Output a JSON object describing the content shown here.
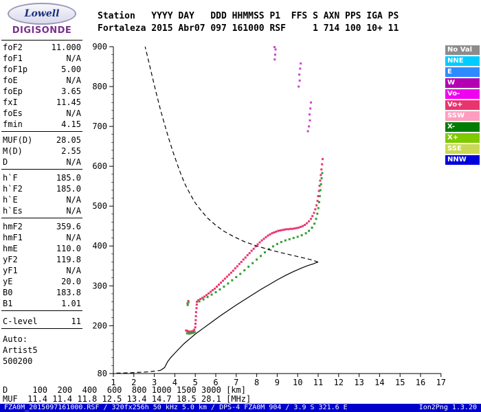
{
  "logo": {
    "line1": "Lowell",
    "line2": "DIGISONDE"
  },
  "header": {
    "line1": "Station   YYYY DAY   DDD HHMMSS P1  FFS S AXN PPS IGA PS",
    "line2": "Fortaleza 2015 Abr07 097 161000 RSF     1 714 100 10+ 11",
    "fields": {
      "Station": "Fortaleza",
      "YYYY": "2015",
      "DAY": "Abr07",
      "DDD": "097",
      "HHMMSS": "161000",
      "P1": "RSF",
      "FFS": "",
      "S": "1",
      "AXN": "714",
      "PPS": "100",
      "IGA": "10+",
      "PS": "11"
    }
  },
  "params": {
    "groups": [
      {
        "rows": [
          {
            "label": "foF2",
            "value": "11.000"
          },
          {
            "label": "foF1",
            "value": "N/A"
          },
          {
            "label": "foF1p",
            "value": "5.00"
          },
          {
            "label": "foE",
            "value": "N/A"
          },
          {
            "label": "foEp",
            "value": "3.65"
          },
          {
            "label": "fxI",
            "value": "11.45"
          },
          {
            "label": "foEs",
            "value": "N/A"
          },
          {
            "label": "fmin",
            "value": "4.15"
          }
        ]
      },
      {
        "rows": [
          {
            "label": "MUF(D)",
            "value": "28.05"
          },
          {
            "label": "M(D)",
            "value": "2.55"
          },
          {
            "label": "D",
            "value": "N/A"
          }
        ]
      },
      {
        "rows": [
          {
            "label": "h`F",
            "value": "185.0"
          },
          {
            "label": "h`F2",
            "value": "185.0"
          },
          {
            "label": "h`E",
            "value": "N/A"
          },
          {
            "label": "h`Es",
            "value": "N/A"
          }
        ]
      },
      {
        "rows": [
          {
            "label": "hmF2",
            "value": "359.6"
          },
          {
            "label": "hmF1",
            "value": "N/A"
          },
          {
            "label": "hmE",
            "value": "110.0"
          },
          {
            "label": "yF2",
            "value": "119.8"
          },
          {
            "label": "yF1",
            "value": "N/A"
          },
          {
            "label": "yE",
            "value": "20.0"
          },
          {
            "label": "B0",
            "value": "183.8"
          },
          {
            "label": "B1",
            "value": "1.01"
          }
        ]
      },
      {
        "rows": [
          {
            "label": "C-level",
            "value": "11"
          }
        ]
      }
    ],
    "footer": [
      "Auto:",
      "Artist5",
      "500200"
    ]
  },
  "legend": {
    "items": [
      {
        "label": "No Val",
        "color": "#8c8c8c"
      },
      {
        "label": "NNE",
        "color": "#00ccff"
      },
      {
        "label": "E",
        "color": "#2e8bff"
      },
      {
        "label": "W",
        "color": "#b300b3"
      },
      {
        "label": "Vo-",
        "color": "#f000f0"
      },
      {
        "label": "Vo+",
        "color": "#e8356e"
      },
      {
        "label": "SSW",
        "color": "#ff9dc0"
      },
      {
        "label": "X-",
        "color": "#007d00"
      },
      {
        "label": "X+",
        "color": "#7fca00"
      },
      {
        "label": "SSE",
        "color": "#c9d955"
      },
      {
        "label": "NNW",
        "color": "#0000dc"
      }
    ]
  },
  "chart_data": {
    "type": "scatter",
    "title": "",
    "x_range": [
      1,
      17
    ],
    "y_range": [
      80,
      900
    ],
    "x_ticks": [
      1,
      2,
      3,
      4,
      5,
      6,
      7,
      8,
      9,
      10,
      11,
      12,
      13,
      14,
      15,
      16,
      17
    ],
    "y_ticks": [
      80,
      200,
      300,
      400,
      500,
      600,
      700,
      800,
      900
    ],
    "x_unit": "MHz",
    "y_unit": "km",
    "grid": false,
    "legend_position": "right",
    "series": [
      {
        "name": "O-mode-trace-Vo+",
        "type": "scatter",
        "color": "#e8356e",
        "points": [
          [
            4.55,
            188
          ],
          [
            4.6,
            187
          ],
          [
            4.62,
            256
          ],
          [
            4.65,
            186
          ],
          [
            4.66,
            262
          ],
          [
            4.7,
            185
          ],
          [
            4.75,
            185
          ],
          [
            4.8,
            185
          ],
          [
            4.85,
            186
          ],
          [
            4.9,
            187
          ],
          [
            4.95,
            190
          ],
          [
            5.0,
            196
          ],
          [
            5.01,
            205
          ],
          [
            5.02,
            214
          ],
          [
            5.03,
            224
          ],
          [
            5.04,
            234
          ],
          [
            5.06,
            244
          ],
          [
            5.07,
            253
          ],
          [
            5.08,
            260
          ],
          [
            5.15,
            264
          ],
          [
            5.25,
            267
          ],
          [
            5.35,
            270
          ],
          [
            5.45,
            273
          ],
          [
            5.55,
            277
          ],
          [
            5.65,
            281
          ],
          [
            5.75,
            285
          ],
          [
            5.85,
            289
          ],
          [
            5.95,
            293
          ],
          [
            6.05,
            298
          ],
          [
            6.15,
            303
          ],
          [
            6.25,
            308
          ],
          [
            6.35,
            313
          ],
          [
            6.45,
            318
          ],
          [
            6.55,
            323
          ],
          [
            6.65,
            328
          ],
          [
            6.75,
            333
          ],
          [
            6.85,
            338
          ],
          [
            6.95,
            344
          ],
          [
            7.05,
            349
          ],
          [
            7.15,
            355
          ],
          [
            7.25,
            360
          ],
          [
            7.35,
            366
          ],
          [
            7.45,
            371
          ],
          [
            7.55,
            377
          ],
          [
            7.65,
            382
          ],
          [
            7.75,
            388
          ],
          [
            7.85,
            393
          ],
          [
            7.95,
            399
          ],
          [
            8.05,
            404
          ],
          [
            8.15,
            409
          ],
          [
            8.25,
            414
          ],
          [
            8.35,
            418
          ],
          [
            8.45,
            422
          ],
          [
            8.55,
            426
          ],
          [
            8.65,
            429
          ],
          [
            8.75,
            432
          ],
          [
            8.85,
            434
          ],
          [
            8.95,
            436
          ],
          [
            9.05,
            438
          ],
          [
            9.15,
            439
          ],
          [
            9.25,
            440
          ],
          [
            9.35,
            441
          ],
          [
            9.45,
            442
          ],
          [
            9.55,
            442
          ],
          [
            9.65,
            443
          ],
          [
            9.75,
            443
          ],
          [
            9.85,
            444
          ],
          [
            9.95,
            445
          ],
          [
            10.05,
            446
          ],
          [
            10.15,
            448
          ],
          [
            10.25,
            450
          ],
          [
            10.35,
            453
          ],
          [
            10.45,
            457
          ],
          [
            10.55,
            462
          ],
          [
            10.65,
            468
          ],
          [
            10.72,
            475
          ],
          [
            10.8,
            483
          ],
          [
            10.86,
            492
          ],
          [
            10.92,
            502
          ],
          [
            10.97,
            513
          ],
          [
            11.0,
            525
          ],
          [
            11.04,
            538
          ],
          [
            11.07,
            551
          ],
          [
            11.1,
            564
          ],
          [
            11.13,
            578
          ],
          [
            11.16,
            592
          ],
          [
            11.19,
            605
          ],
          [
            11.22,
            618
          ]
        ]
      },
      {
        "name": "X-mode-trace",
        "type": "scatter",
        "color": "#2f9e2f",
        "points": [
          [
            4.6,
            181
          ],
          [
            4.7,
            180
          ],
          [
            4.8,
            181
          ],
          [
            4.9,
            182
          ],
          [
            4.97,
            184
          ],
          [
            4.63,
            252
          ],
          [
            4.67,
            259
          ],
          [
            5.2,
            261
          ],
          [
            5.4,
            266
          ],
          [
            5.6,
            272
          ],
          [
            5.8,
            278
          ],
          [
            6.0,
            284
          ],
          [
            6.2,
            291
          ],
          [
            6.4,
            298
          ],
          [
            6.6,
            306
          ],
          [
            6.8,
            314
          ],
          [
            7.0,
            322
          ],
          [
            7.2,
            330
          ],
          [
            7.4,
            339
          ],
          [
            7.6,
            348
          ],
          [
            7.8,
            357
          ],
          [
            8.0,
            366
          ],
          [
            8.2,
            375
          ],
          [
            8.4,
            384
          ],
          [
            8.6,
            392
          ],
          [
            8.8,
            399
          ],
          [
            9.0,
            405
          ],
          [
            9.2,
            410
          ],
          [
            9.4,
            414
          ],
          [
            9.6,
            417
          ],
          [
            9.8,
            420
          ],
          [
            10.0,
            423
          ],
          [
            10.2,
            427
          ],
          [
            10.4,
            432
          ],
          [
            10.55,
            438
          ],
          [
            10.7,
            446
          ],
          [
            10.82,
            456
          ],
          [
            10.9,
            468
          ],
          [
            10.96,
            481
          ],
          [
            11.01,
            495
          ],
          [
            11.05,
            510
          ],
          [
            11.08,
            525
          ],
          [
            11.11,
            540
          ],
          [
            11.14,
            555
          ],
          [
            11.17,
            570
          ],
          [
            11.2,
            583
          ]
        ]
      },
      {
        "name": "spread-echoes",
        "type": "scatter",
        "color": "#cc44cc",
        "points": [
          [
            8.88,
            868
          ],
          [
            8.9,
            880
          ],
          [
            8.92,
            893
          ],
          [
            8.87,
            899
          ],
          [
            10.05,
            800
          ],
          [
            10.1,
            815
          ],
          [
            10.08,
            830
          ],
          [
            10.12,
            845
          ],
          [
            10.15,
            858
          ],
          [
            10.5,
            688
          ],
          [
            10.55,
            700
          ],
          [
            10.6,
            715
          ],
          [
            10.58,
            730
          ],
          [
            10.62,
            745
          ],
          [
            10.65,
            760
          ]
        ]
      },
      {
        "name": "true-height-profile",
        "type": "line",
        "color": "#000000",
        "points": [
          [
            3.3,
            88
          ],
          [
            3.5,
            95
          ],
          [
            3.65,
            110
          ],
          [
            3.8,
            120
          ],
          [
            4.0,
            131
          ],
          [
            4.2,
            142
          ],
          [
            4.45,
            155
          ],
          [
            4.7,
            166
          ],
          [
            5.0,
            179
          ],
          [
            5.4,
            194
          ],
          [
            5.8,
            209
          ],
          [
            6.2,
            224
          ],
          [
            6.6,
            238
          ],
          [
            7.0,
            252
          ],
          [
            7.4,
            265
          ],
          [
            7.8,
            278
          ],
          [
            8.2,
            291
          ],
          [
            8.6,
            303
          ],
          [
            9.0,
            315
          ],
          [
            9.4,
            326
          ],
          [
            9.8,
            336
          ],
          [
            10.2,
            345
          ],
          [
            10.5,
            351
          ],
          [
            10.75,
            355
          ],
          [
            10.9,
            358
          ],
          [
            11.0,
            359.6
          ]
        ]
      },
      {
        "name": "extrapolated-topside-profile",
        "type": "dashed-line",
        "color": "#000000",
        "points": [
          [
            11.0,
            359.6
          ],
          [
            10.7,
            365
          ],
          [
            10.3,
            370
          ],
          [
            9.8,
            376
          ],
          [
            9.2,
            383
          ],
          [
            8.6,
            391
          ],
          [
            8.0,
            400
          ],
          [
            7.4,
            411
          ],
          [
            6.9,
            423
          ],
          [
            6.4,
            437
          ],
          [
            6.0,
            452
          ],
          [
            5.6,
            470
          ],
          [
            5.3,
            488
          ],
          [
            5.0,
            508
          ],
          [
            4.75,
            530
          ],
          [
            4.5,
            555
          ],
          [
            4.3,
            580
          ],
          [
            4.1,
            608
          ],
          [
            3.9,
            638
          ],
          [
            3.7,
            670
          ],
          [
            3.5,
            705
          ],
          [
            3.3,
            742
          ],
          [
            3.1,
            782
          ],
          [
            2.9,
            825
          ],
          [
            2.7,
            868
          ],
          [
            2.55,
            900
          ]
        ]
      },
      {
        "name": "extrapolated-bottom-profile",
        "type": "dashed-line",
        "color": "#000000",
        "points": [
          [
            1.15,
            81
          ],
          [
            1.6,
            81.5
          ],
          [
            2.1,
            82.5
          ],
          [
            2.6,
            84
          ],
          [
            3.0,
            86
          ],
          [
            3.3,
            88
          ]
        ]
      }
    ]
  },
  "bottom_table": {
    "d_line": "D     100  200  400  600  800 1000 1500 3000 [km]",
    "muf_line": "MUF  11.4 11.4 11.8 12.5 13.4 14.7 18.5 28.1 [MHz]",
    "d_label": "D",
    "distances_km": [
      100,
      200,
      400,
      600,
      800,
      1000,
      1500,
      3000
    ],
    "d_unit": "[km]",
    "muf_label": "MUF",
    "muf_mhz": [
      11.4,
      11.4,
      11.8,
      12.5,
      13.4,
      14.7,
      18.5,
      28.1
    ],
    "muf_unit": "[MHz]"
  },
  "status_bar": {
    "left": "FZA0M_2015097161000.RSF / 320fx256h 50 kHz 5.0 km / DPS-4 FZA0M 904 / 3.9 S 321.6 E",
    "right": "Ion2Png 1.3.20",
    "bg": "#0000cd"
  }
}
